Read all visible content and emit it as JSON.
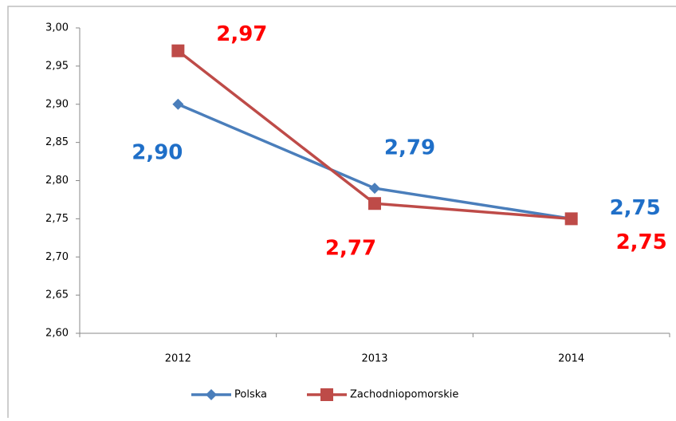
{
  "chart_data": {
    "type": "line",
    "categories": [
      "2012",
      "2013",
      "2014"
    ],
    "series": [
      {
        "name": "Polska",
        "color": "#4a7ebb",
        "label_color": "#1f6fc8",
        "marker": "diamond",
        "values": [
          2.9,
          2.79,
          2.75
        ],
        "value_labels": [
          "2,90",
          "2,79",
          "2,75"
        ]
      },
      {
        "name": "Zachodniopomorskie",
        "color": "#be4b48",
        "label_color": "#ff0000",
        "marker": "square",
        "values": [
          2.97,
          2.77,
          2.75
        ],
        "value_labels": [
          "2,97",
          "2,77",
          "2,75"
        ]
      }
    ],
    "ylim": [
      2.6,
      3.0
    ],
    "yticks": [
      {
        "value": 2.6,
        "label": "2,60"
      },
      {
        "value": 2.65,
        "label": "2,65"
      },
      {
        "value": 2.7,
        "label": "2,70"
      },
      {
        "value": 2.75,
        "label": "2,75"
      },
      {
        "value": 2.8,
        "label": "2,80"
      },
      {
        "value": 2.85,
        "label": "2,85"
      },
      {
        "value": 2.9,
        "label": "2,90"
      },
      {
        "value": 2.95,
        "label": "2,95"
      },
      {
        "value": 3.0,
        "label": "3,00"
      }
    ],
    "grid": false,
    "legend": "bottom"
  }
}
